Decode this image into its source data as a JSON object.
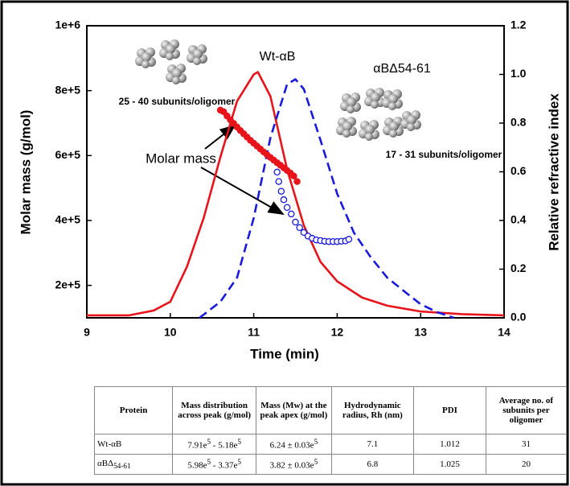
{
  "chart_data": {
    "type": "line",
    "x_label": "Time (min)",
    "y_label": "Molar mass (g/mol)",
    "y2_label": "Relative refractive index",
    "xlim": [
      9,
      14
    ],
    "xticks": [
      9,
      10,
      11,
      12,
      13,
      14
    ],
    "ylim": [
      100000,
      1000000
    ],
    "yticks": [
      {
        "value": 200000,
        "label": "2e+5"
      },
      {
        "value": 400000,
        "label": "4e+5"
      },
      {
        "value": 600000,
        "label": "6e+5"
      },
      {
        "value": 800000,
        "label": "8e+5"
      },
      {
        "value": 1000000,
        "label": "1e+6"
      }
    ],
    "y2lim": [
      0,
      1.2
    ],
    "y2ticks": [
      {
        "value": 0,
        "label": "0.0"
      },
      0.2,
      0.4,
      0.6,
      0.8,
      {
        "value": 1,
        "label": "1.0"
      },
      1.2
    ],
    "series": [
      {
        "name": "Wt-αB",
        "color": "#e8141b",
        "axis": "y2",
        "line_style": "solid",
        "x": [
          9,
          9.5,
          9.8,
          10,
          10.2,
          10.4,
          10.6,
          10.8,
          11,
          11.05,
          11.2,
          11.4,
          11.6,
          11.8,
          12,
          12.3,
          12.6,
          13,
          13.5,
          14
        ],
        "values": [
          0.01,
          0.01,
          0.03,
          0.066,
          0.21,
          0.41,
          0.66,
          0.89,
          1.0,
          1.01,
          0.91,
          0.61,
          0.38,
          0.23,
          0.15,
          0.083,
          0.05,
          0.026,
          0.015,
          0.01
        ]
      },
      {
        "name": "αBΔ54-61",
        "color": "#1a1adc",
        "axis": "y2",
        "line_style": "dashed",
        "x": [
          10.35,
          10.6,
          10.8,
          11,
          11.2,
          11.4,
          11.5,
          11.6,
          11.8,
          12,
          12.2,
          12.4,
          12.6,
          12.8,
          13,
          13.2,
          13.4
        ],
        "values": [
          0,
          0.066,
          0.165,
          0.41,
          0.74,
          0.96,
          0.98,
          0.94,
          0.73,
          0.51,
          0.35,
          0.25,
          0.165,
          0.11,
          0.056,
          0.023,
          0
        ]
      },
      {
        "color": "#e8141b",
        "axis": "y",
        "marker": "filled-circle",
        "x": [
          10.6,
          10.64,
          10.68,
          10.72,
          10.76,
          10.8,
          10.84,
          10.88,
          10.92,
          10.96,
          11,
          11.04,
          11.08,
          11.12,
          11.16,
          11.2,
          11.24,
          11.28,
          11.32,
          11.36,
          11.4,
          11.44,
          11.48,
          11.52
        ],
        "values": [
          740000,
          735000,
          722000,
          710000,
          699000,
          688000,
          677000,
          667000,
          657000,
          647000,
          638000,
          629000,
          620000,
          611000,
          602000,
          594000,
          586000,
          578000,
          570000,
          562000,
          554000,
          546000,
          537000,
          520000
        ]
      },
      {
        "color": "#1a1adc",
        "axis": "y",
        "marker": "open-circle",
        "x": [
          11.28,
          11.3,
          11.33,
          11.36,
          11.4,
          11.45,
          11.5,
          11.55,
          11.6,
          11.65,
          11.7,
          11.75,
          11.8,
          11.85,
          11.9,
          11.95,
          12,
          12.05,
          12.1,
          12.14
        ],
        "values": [
          549000,
          520000,
          490000,
          464000,
          440000,
          420000,
          395000,
          378000,
          363000,
          352000,
          345000,
          340000,
          338000,
          336000,
          335000,
          335000,
          335000,
          336000,
          337000,
          342000
        ]
      }
    ],
    "annotations": [
      {
        "text": "Molar mass"
      },
      {
        "text": "25 - 40 subunits/oligomer"
      },
      {
        "text": "17 - 31 subunits/oligomer"
      }
    ]
  },
  "table": {
    "header": [
      "Protein",
      "Mass distribution across peak (g/mol)",
      "Mass (Mw) at the peak apex (g/mol)",
      "Hydrodynamic radius, Rh (nm)",
      "PDI",
      "Average no. of subunits per oligomer"
    ],
    "rows": [
      [
        "Wt-αB",
        "7.91e5 - 5.18e5",
        "6.24 ± 0.03e5",
        "7.1",
        "1.012",
        "31"
      ],
      [
        "αBΔ54-61",
        "5.98e5 - 3.37e5",
        "3.82 ± 0.03e5",
        "6.8",
        "1.025",
        "20"
      ]
    ]
  }
}
